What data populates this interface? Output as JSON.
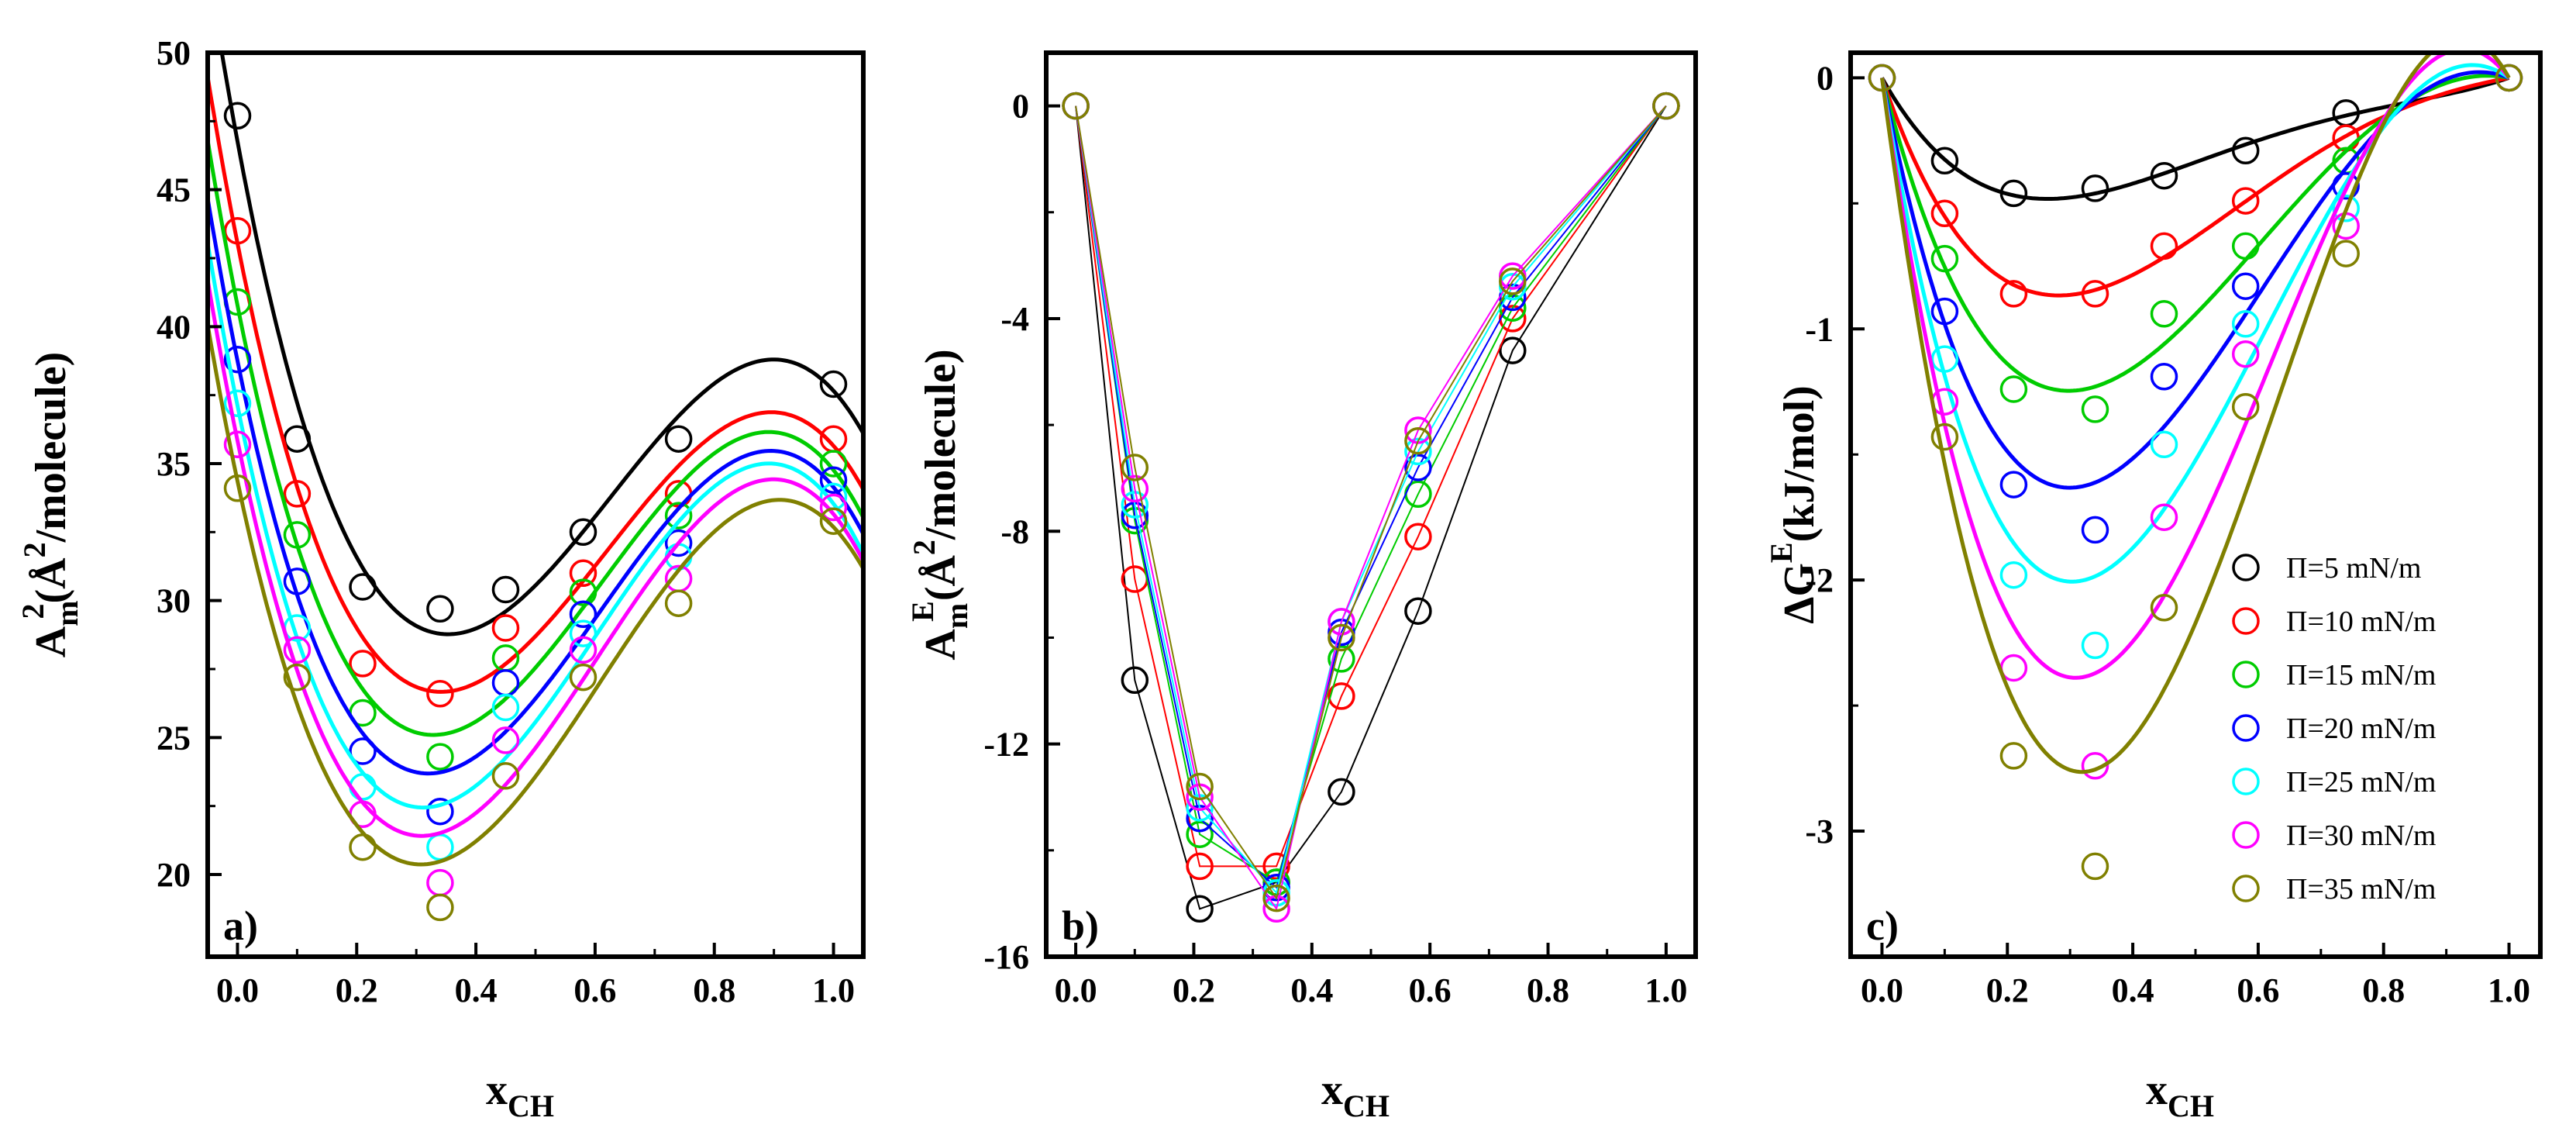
{
  "chart_data": [
    {
      "panel": "a)",
      "type": "scatter",
      "xlabel": "x",
      "xlabel_sub": "CH",
      "ylabel_main": "A",
      "ylabel_sub": "m",
      "ylabel_sup": "2",
      "ylabel_unit": "(Å",
      "ylabel_unit_sup": "2",
      "ylabel_rest": "/molecule)",
      "xlim": [
        -0.05,
        1.05
      ],
      "ylim": [
        17,
        50
      ],
      "xticks": [
        "0.0",
        "0.2",
        "0.4",
        "0.6",
        "0.8",
        "1.0"
      ],
      "yticks": [
        "20",
        "25",
        "30",
        "35",
        "40",
        "45",
        "50"
      ],
      "fit_lines": true,
      "series": [
        {
          "name": "Π=5 mN/m",
          "color": "#000000",
          "x": [
            0,
            0.1,
            0.21,
            0.34,
            0.45,
            0.58,
            0.74,
            1.0
          ],
          "y": [
            47.7,
            35.9,
            30.5,
            29.7,
            30.4,
            32.5,
            35.9,
            37.9
          ]
        },
        {
          "name": "Π=10 mN/m",
          "color": "#ff0000",
          "x": [
            0,
            0.1,
            0.21,
            0.34,
            0.45,
            0.58,
            0.74,
            1.0
          ],
          "y": [
            43.5,
            33.9,
            27.7,
            26.6,
            29.0,
            31.0,
            33.9,
            35.9
          ]
        },
        {
          "name": "Π=15 mN/m",
          "color": "#00cc00",
          "x": [
            0,
            0.1,
            0.21,
            0.34,
            0.45,
            0.58,
            0.74,
            1.0
          ],
          "y": [
            40.9,
            32.4,
            25.9,
            24.3,
            27.9,
            30.3,
            33.1,
            35.0
          ]
        },
        {
          "name": "Π=20 mN/m",
          "color": "#0000ff",
          "x": [
            0,
            0.1,
            0.21,
            0.34,
            0.45,
            0.58,
            0.74,
            1.0
          ],
          "y": [
            38.8,
            30.7,
            24.5,
            22.3,
            27.0,
            29.5,
            32.1,
            34.4
          ]
        },
        {
          "name": "Π=25 mN/m",
          "color": "#00ffff",
          "x": [
            0,
            0.1,
            0.21,
            0.34,
            0.45,
            0.58,
            0.74,
            1.0
          ],
          "y": [
            37.2,
            29.0,
            23.2,
            21.0,
            26.1,
            28.8,
            31.6,
            33.8
          ]
        },
        {
          "name": "Π=30 mN/m",
          "color": "#ff00ff",
          "x": [
            0,
            0.1,
            0.21,
            0.34,
            0.45,
            0.58,
            0.74,
            1.0
          ],
          "y": [
            35.7,
            28.2,
            22.2,
            19.7,
            24.9,
            28.2,
            30.8,
            33.4
          ]
        },
        {
          "name": "Π=35 mN/m",
          "color": "#808000",
          "x": [
            0,
            0.1,
            0.21,
            0.34,
            0.45,
            0.58,
            0.74,
            1.0
          ],
          "y": [
            34.1,
            27.2,
            21.0,
            18.8,
            23.6,
            27.2,
            29.9,
            32.9
          ]
        }
      ]
    },
    {
      "panel": "b)",
      "type": "line",
      "xlabel": "x",
      "xlabel_sub": "CH",
      "ylabel_main": "A",
      "ylabel_sub": "m",
      "ylabel_sup": "E",
      "ylabel_unit": "(Å",
      "ylabel_unit_sup": "2",
      "ylabel_rest": "/molecule)",
      "xlim": [
        -0.05,
        1.05
      ],
      "ylim": [
        -16,
        1
      ],
      "xticks": [
        "0.0",
        "0.2",
        "0.4",
        "0.6",
        "0.8",
        "1.0"
      ],
      "yticks": [
        "-16",
        "-12",
        "-8",
        "-4",
        "0"
      ],
      "fit_lines": false,
      "series": [
        {
          "name": "Π=5 mN/m",
          "color": "#000000",
          "x": [
            0,
            0.1,
            0.21,
            0.34,
            0.45,
            0.58,
            0.74,
            1.0
          ],
          "y": [
            0,
            -10.8,
            -15.1,
            -14.6,
            -12.9,
            -9.5,
            -4.6,
            0
          ]
        },
        {
          "name": "Π=10 mN/m",
          "color": "#ff0000",
          "x": [
            0,
            0.1,
            0.21,
            0.34,
            0.45,
            0.58,
            0.74,
            1.0
          ],
          "y": [
            0,
            -8.9,
            -14.3,
            -14.3,
            -11.1,
            -8.1,
            -4.0,
            0
          ]
        },
        {
          "name": "Π=15 mN/m",
          "color": "#00cc00",
          "x": [
            0,
            0.1,
            0.21,
            0.34,
            0.45,
            0.58,
            0.74,
            1.0
          ],
          "y": [
            0,
            -7.8,
            -13.7,
            -14.6,
            -10.4,
            -7.3,
            -3.8,
            0
          ]
        },
        {
          "name": "Π=20 mN/m",
          "color": "#0000ff",
          "x": [
            0,
            0.1,
            0.21,
            0.34,
            0.45,
            0.58,
            0.74,
            1.0
          ],
          "y": [
            0,
            -7.7,
            -13.4,
            -14.7,
            -9.9,
            -6.8,
            -3.6,
            0
          ]
        },
        {
          "name": "Π=25 mN/m",
          "color": "#00ffff",
          "x": [
            0,
            0.1,
            0.21,
            0.34,
            0.45,
            0.58,
            0.74,
            1.0
          ],
          "y": [
            0,
            -7.5,
            -13.2,
            -14.8,
            -9.7,
            -6.5,
            -3.4,
            0
          ]
        },
        {
          "name": "Π=30 mN/m",
          "color": "#ff00ff",
          "x": [
            0,
            0.1,
            0.21,
            0.34,
            0.45,
            0.58,
            0.74,
            1.0
          ],
          "y": [
            0,
            -7.2,
            -13.0,
            -15.1,
            -9.7,
            -6.1,
            -3.2,
            0
          ]
        },
        {
          "name": "Π=35 mN/m",
          "color": "#808000",
          "x": [
            0,
            0.1,
            0.21,
            0.34,
            0.45,
            0.58,
            0.74,
            1.0
          ],
          "y": [
            0,
            -6.8,
            -12.8,
            -14.9,
            -10.0,
            -6.3,
            -3.3,
            0
          ]
        }
      ]
    },
    {
      "panel": "c)",
      "type": "scatter",
      "xlabel": "x",
      "xlabel_sub": "CH",
      "ylabel_main": "ΔG",
      "ylabel_sup": "E",
      "ylabel_rest": "(kJ/mol)",
      "xlim": [
        -0.05,
        1.05
      ],
      "ylim": [
        -3.5,
        0.1
      ],
      "xticks": [
        "0.0",
        "0.2",
        "0.4",
        "0.6",
        "0.8",
        "1.0"
      ],
      "yticks": [
        "-3",
        "-2",
        "-1",
        "0"
      ],
      "fit_lines": true,
      "legend_position": "right",
      "series": [
        {
          "name": "Π=5 mN/m",
          "color": "#000000",
          "x": [
            0,
            0.1,
            0.21,
            0.34,
            0.45,
            0.58,
            0.74,
            1.0
          ],
          "y": [
            0,
            -0.33,
            -0.46,
            -0.44,
            -0.39,
            -0.29,
            -0.14,
            0
          ]
        },
        {
          "name": "Π=10 mN/m",
          "color": "#ff0000",
          "x": [
            0,
            0.1,
            0.21,
            0.34,
            0.45,
            0.58,
            0.74,
            1.0
          ],
          "y": [
            0,
            -0.54,
            -0.86,
            -0.86,
            -0.67,
            -0.49,
            -0.24,
            0
          ]
        },
        {
          "name": "Π=15 mN/m",
          "color": "#00cc00",
          "x": [
            0,
            0.1,
            0.21,
            0.34,
            0.45,
            0.58,
            0.74,
            1.0
          ],
          "y": [
            0,
            -0.72,
            -1.24,
            -1.32,
            -0.94,
            -0.67,
            -0.33,
            0
          ]
        },
        {
          "name": "Π=20 mN/m",
          "color": "#0000ff",
          "x": [
            0,
            0.1,
            0.21,
            0.34,
            0.45,
            0.58,
            0.74,
            1.0
          ],
          "y": [
            0,
            -0.93,
            -1.62,
            -1.8,
            -1.19,
            -0.83,
            -0.43,
            0
          ]
        },
        {
          "name": "Π=25 mN/m",
          "color": "#00ffff",
          "x": [
            0,
            0.1,
            0.21,
            0.34,
            0.45,
            0.58,
            0.74,
            1.0
          ],
          "y": [
            0,
            -1.12,
            -1.98,
            -2.26,
            -1.46,
            -0.98,
            -0.52,
            0
          ]
        },
        {
          "name": "Π=30 mN/m",
          "color": "#ff00ff",
          "x": [
            0,
            0.1,
            0.21,
            0.34,
            0.45,
            0.58,
            0.74,
            1.0
          ],
          "y": [
            0,
            -1.29,
            -2.35,
            -2.74,
            -1.75,
            -1.1,
            -0.59,
            0
          ]
        },
        {
          "name": "Π=35 mN/m",
          "color": "#808000",
          "x": [
            0,
            0.1,
            0.21,
            0.34,
            0.45,
            0.58,
            0.74,
            1.0
          ],
          "y": [
            0,
            -1.43,
            -2.7,
            -3.14,
            -2.11,
            -1.31,
            -0.7,
            0
          ]
        }
      ]
    }
  ]
}
